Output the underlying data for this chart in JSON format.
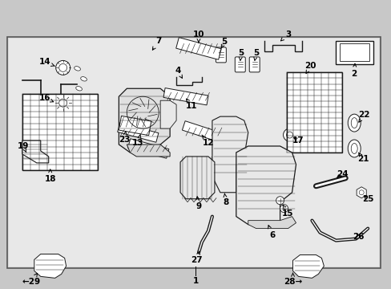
{
  "bg_color": "#c8c8c8",
  "border_facecolor": "#f0f0f0",
  "line_color": "#1a1a1a",
  "fig_width": 4.89,
  "fig_height": 3.6,
  "dpi": 100
}
